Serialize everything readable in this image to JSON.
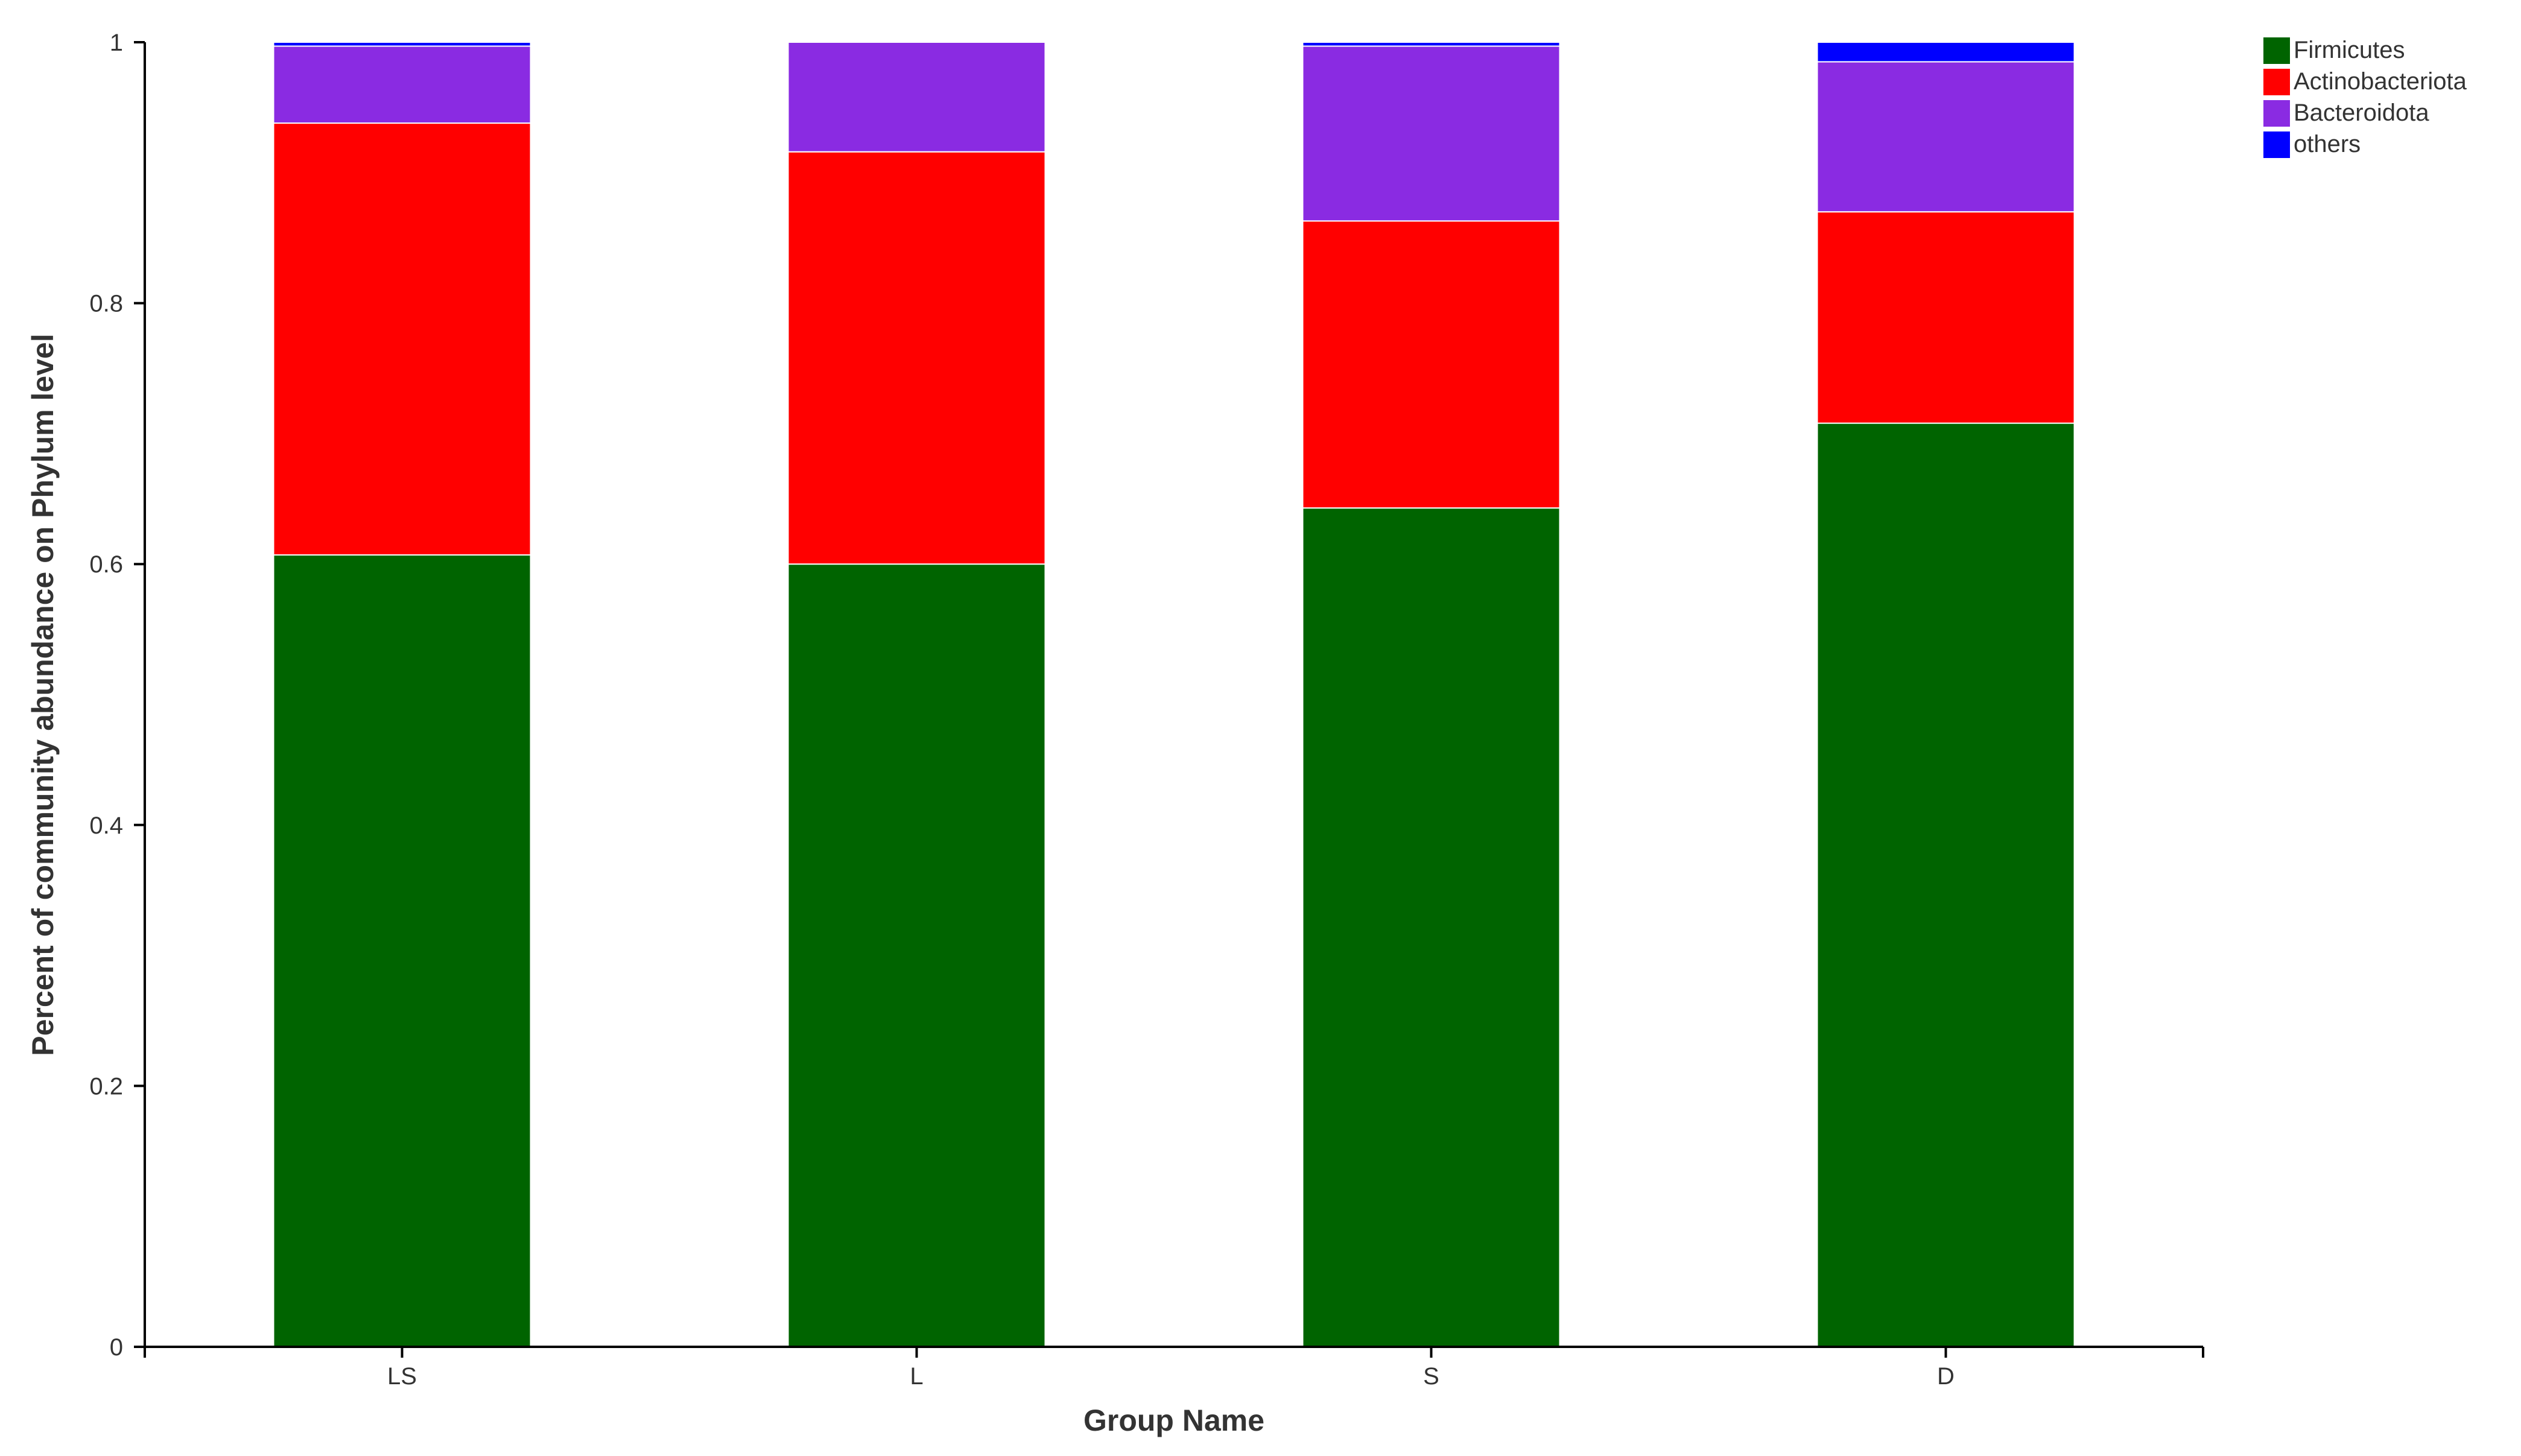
{
  "chart_data": {
    "type": "bar",
    "stacked": true,
    "categories": [
      "LS",
      "L",
      "S",
      "D"
    ],
    "series": [
      {
        "name": "Firmicutes",
        "color": "#006400",
        "values": [
          0.607,
          0.6,
          0.643,
          0.708
        ]
      },
      {
        "name": "Actinobacteriota",
        "color": "#ff0000",
        "values": [
          0.331,
          0.316,
          0.22,
          0.162
        ]
      },
      {
        "name": "Bacteroidota",
        "color": "#8a2be2",
        "values": [
          0.059,
          0.084,
          0.134,
          0.115
        ]
      },
      {
        "name": "others",
        "color": "#0000ff",
        "values": [
          0.003,
          0.0,
          0.003,
          0.015
        ]
      }
    ],
    "xlabel": "Group Name",
    "ylabel": "Percent of community abundance on Phylum level",
    "ylim": [
      0,
      1
    ],
    "yticks": [
      "0",
      "0.2",
      "0.4",
      "0.6",
      "0.8",
      "1"
    ],
    "grid": false,
    "legend_position": "top-right"
  }
}
